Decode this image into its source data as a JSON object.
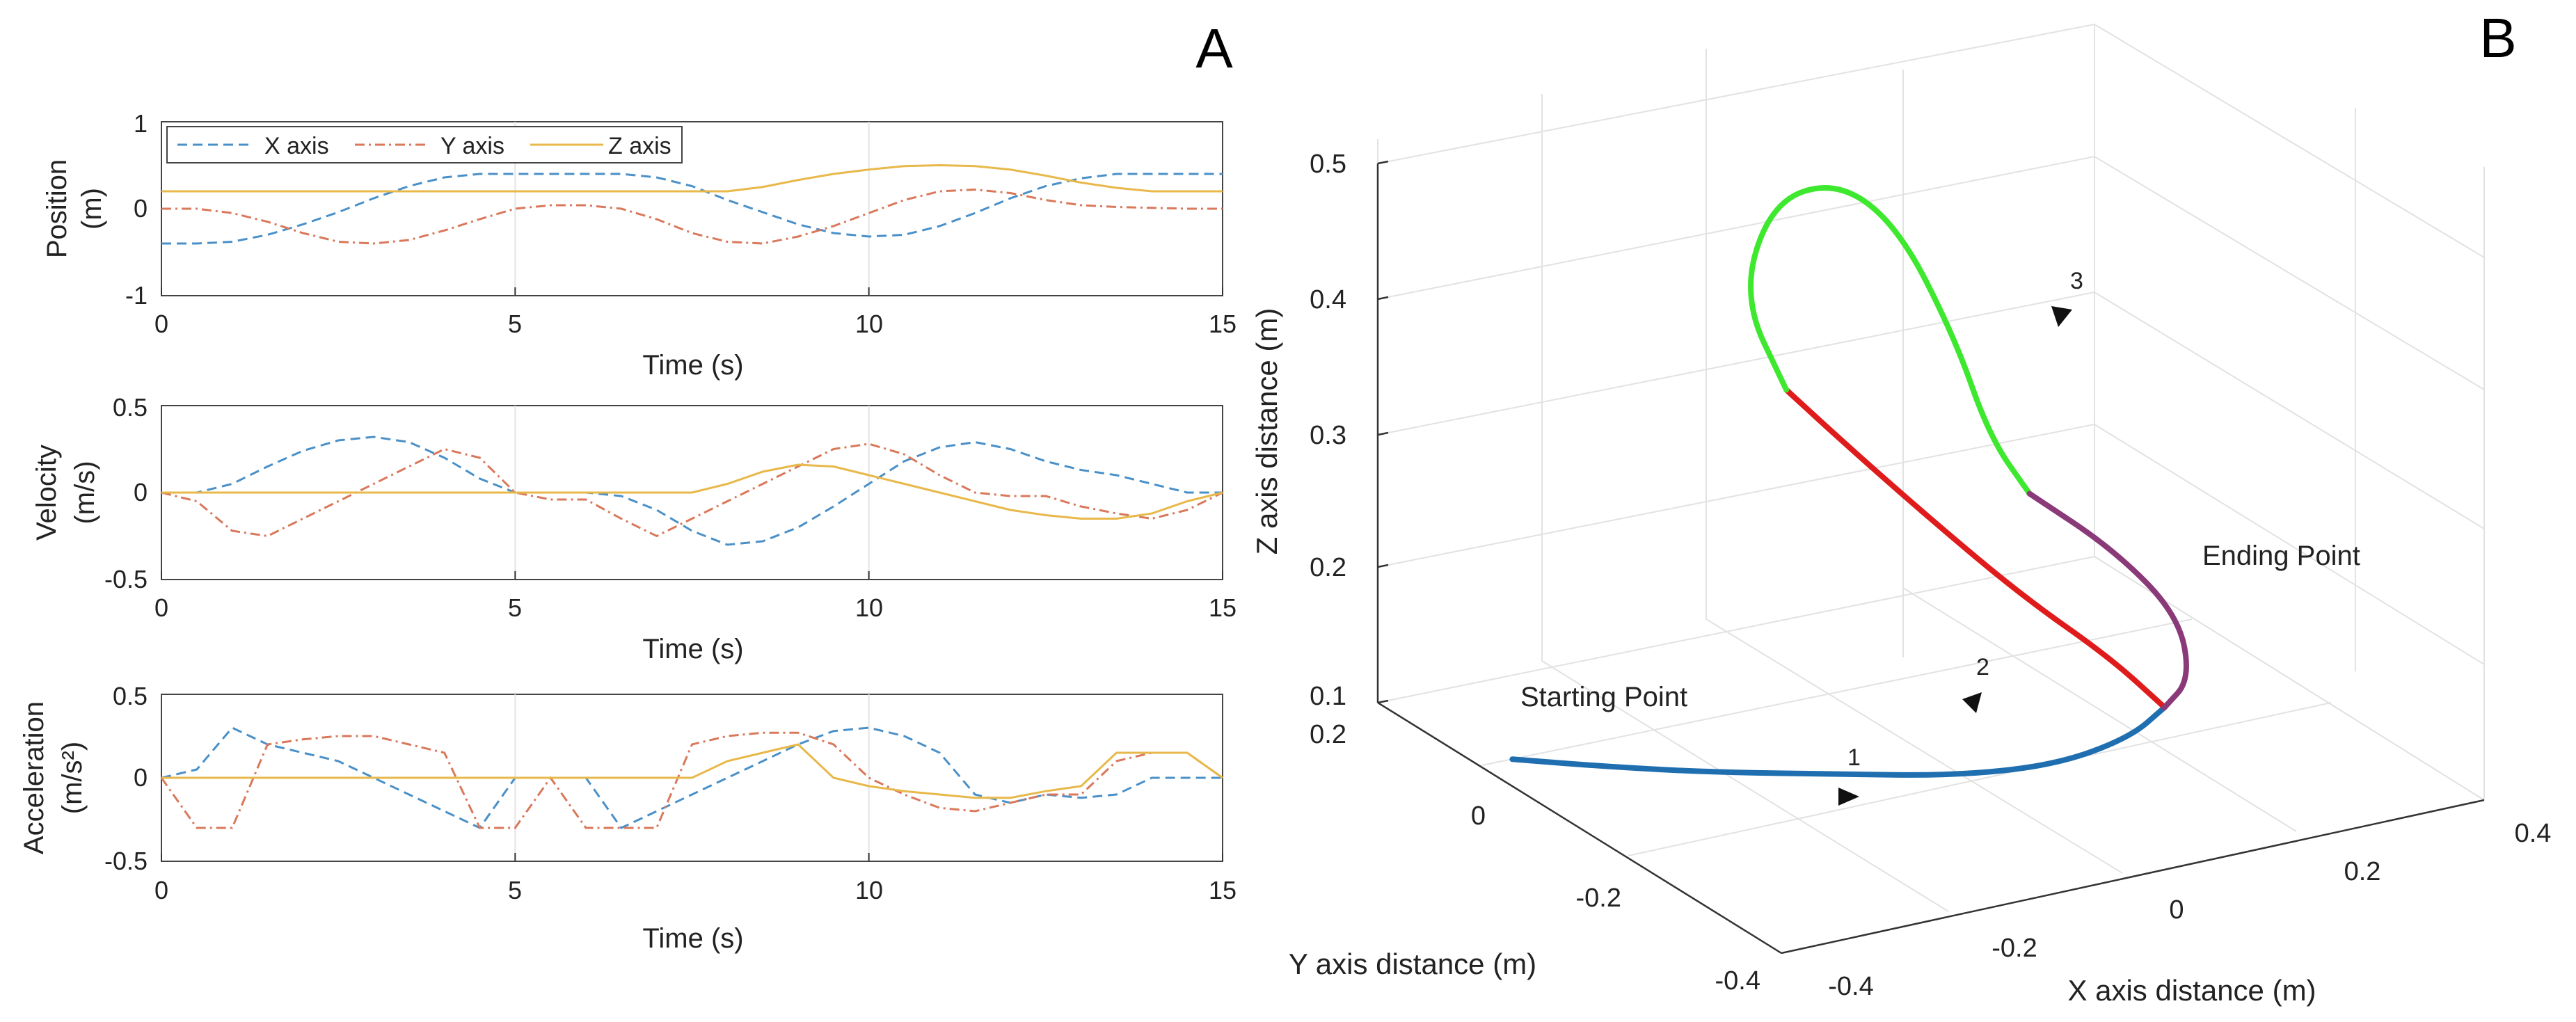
{
  "panels": {
    "a_label": "A",
    "b_label": "B"
  },
  "colors": {
    "x": "#4a90c8",
    "y": "#d9785a",
    "z": "#e8b84a",
    "axis": "#333333",
    "grid": "#e4e4e4",
    "blue": "#1f6fb0",
    "red": "#e01b1b",
    "green": "#3ee82e",
    "purple": "#8a3a78"
  },
  "chart_data": [
    {
      "type": "line",
      "title": "",
      "xlabel": "Time (s)",
      "ylabel": [
        "Position",
        "(m)"
      ],
      "xlim": [
        0,
        15
      ],
      "ylim": [
        -1,
        1
      ],
      "xticks": [
        "0",
        "5",
        "10",
        "15"
      ],
      "yticks": [
        "-1",
        "0",
        "1"
      ],
      "legend": {
        "placement": "top-left",
        "entries": [
          "X axis",
          "Y axis",
          "Z axis"
        ]
      },
      "x": [
        0,
        0.5,
        1,
        1.5,
        2,
        2.5,
        3,
        3.5,
        4,
        4.5,
        5,
        5.5,
        6,
        6.5,
        7,
        7.5,
        8,
        8.5,
        9,
        9.5,
        10,
        10.5,
        11,
        11.5,
        12,
        12.5,
        13,
        13.5,
        14,
        14.5,
        15
      ],
      "series": [
        {
          "name": "X axis",
          "values": [
            -0.4,
            -0.4,
            -0.38,
            -0.3,
            -0.18,
            -0.04,
            0.12,
            0.26,
            0.36,
            0.4,
            0.4,
            0.4,
            0.4,
            0.4,
            0.36,
            0.26,
            0.1,
            -0.04,
            -0.18,
            -0.28,
            -0.32,
            -0.3,
            -0.2,
            -0.05,
            0.12,
            0.26,
            0.35,
            0.4,
            0.4,
            0.4,
            0.4
          ]
        },
        {
          "name": "Y axis",
          "values": [
            0,
            0,
            -0.05,
            -0.15,
            -0.28,
            -0.38,
            -0.4,
            -0.36,
            -0.25,
            -0.12,
            0,
            0.04,
            0.04,
            0,
            -0.12,
            -0.28,
            -0.38,
            -0.4,
            -0.32,
            -0.2,
            -0.05,
            0.1,
            0.2,
            0.22,
            0.18,
            0.1,
            0.04,
            0.02,
            0.01,
            0,
            0
          ]
        },
        {
          "name": "Z axis",
          "values": [
            0.2,
            0.2,
            0.2,
            0.2,
            0.2,
            0.2,
            0.2,
            0.2,
            0.2,
            0.2,
            0.2,
            0.2,
            0.2,
            0.2,
            0.2,
            0.2,
            0.2,
            0.25,
            0.33,
            0.4,
            0.45,
            0.49,
            0.5,
            0.49,
            0.45,
            0.38,
            0.3,
            0.24,
            0.2,
            0.2,
            0.2
          ]
        }
      ]
    },
    {
      "type": "line",
      "title": "",
      "xlabel": "Time (s)",
      "ylabel": [
        "Velocity",
        "(m/s)"
      ],
      "xlim": [
        0,
        15
      ],
      "ylim": [
        -0.5,
        0.5
      ],
      "xticks": [
        "0",
        "5",
        "10",
        "15"
      ],
      "yticks": [
        "-0.5",
        "0",
        "0.5"
      ],
      "x": [
        0,
        0.5,
        1,
        1.5,
        2,
        2.5,
        3,
        3.5,
        4,
        4.5,
        5,
        5.5,
        6,
        6.5,
        7,
        7.5,
        8,
        8.5,
        9,
        9.5,
        10,
        10.5,
        11,
        11.5,
        12,
        12.5,
        13,
        13.5,
        14,
        14.5,
        15
      ],
      "series": [
        {
          "name": "X axis",
          "values": [
            0,
            0,
            0.05,
            0.15,
            0.24,
            0.3,
            0.32,
            0.29,
            0.2,
            0.08,
            0,
            0,
            0,
            -0.02,
            -0.1,
            -0.22,
            -0.3,
            -0.28,
            -0.2,
            -0.08,
            0.05,
            0.18,
            0.26,
            0.29,
            0.25,
            0.18,
            0.13,
            0.1,
            0.05,
            0,
            0
          ]
        },
        {
          "name": "Y axis",
          "values": [
            0,
            -0.05,
            -0.22,
            -0.25,
            -0.15,
            -0.05,
            0.05,
            0.15,
            0.25,
            0.2,
            0,
            -0.04,
            -0.04,
            -0.15,
            -0.25,
            -0.15,
            -0.05,
            0.05,
            0.15,
            0.25,
            0.28,
            0.22,
            0.1,
            0,
            -0.02,
            -0.02,
            -0.08,
            -0.12,
            -0.15,
            -0.1,
            0
          ]
        },
        {
          "name": "Z axis",
          "values": [
            0,
            0,
            0,
            0,
            0,
            0,
            0,
            0,
            0,
            0,
            0,
            0,
            0,
            0,
            0,
            0,
            0.05,
            0.12,
            0.16,
            0.15,
            0.1,
            0.05,
            0,
            -0.05,
            -0.1,
            -0.13,
            -0.15,
            -0.15,
            -0.12,
            -0.05,
            0
          ]
        }
      ]
    },
    {
      "type": "line",
      "title": "",
      "xlabel": "Time (s)",
      "ylabel": [
        "Acceleration",
        "(m/s²)"
      ],
      "xlim": [
        0,
        15
      ],
      "ylim": [
        -0.5,
        0.5
      ],
      "xticks": [
        "0",
        "5",
        "10",
        "15"
      ],
      "yticks": [
        "-0.5",
        "0",
        "0.5"
      ],
      "x": [
        0,
        0.5,
        1,
        1.5,
        2,
        2.5,
        3,
        3.5,
        4,
        4.5,
        5,
        5.5,
        6,
        6.5,
        7,
        7.5,
        8,
        8.5,
        9,
        9.5,
        10,
        10.5,
        11,
        11.5,
        12,
        12.5,
        13,
        13.5,
        14,
        14.5,
        15
      ],
      "series": [
        {
          "name": "X axis",
          "values": [
            0,
            0.05,
            0.3,
            0.2,
            0.15,
            0.1,
            0,
            -0.1,
            -0.2,
            -0.3,
            0,
            0,
            0,
            -0.3,
            -0.2,
            -0.1,
            0,
            0.1,
            0.2,
            0.28,
            0.3,
            0.25,
            0.15,
            -0.1,
            -0.15,
            -0.1,
            -0.12,
            -0.1,
            0,
            0,
            0
          ]
        },
        {
          "name": "Y axis",
          "values": [
            0,
            -0.3,
            -0.3,
            0.2,
            0.23,
            0.25,
            0.25,
            0.2,
            0.15,
            -0.3,
            -0.3,
            0,
            -0.3,
            -0.3,
            -0.3,
            0.2,
            0.25,
            0.27,
            0.27,
            0.2,
            0,
            -0.1,
            -0.18,
            -0.2,
            -0.15,
            -0.1,
            -0.1,
            0.1,
            0.15,
            0.15,
            0
          ]
        },
        {
          "name": "Z axis",
          "values": [
            0,
            0,
            0,
            0,
            0,
            0,
            0,
            0,
            0,
            0,
            0,
            0,
            0,
            0,
            0,
            0,
            0.1,
            0.15,
            0.2,
            0,
            -0.05,
            -0.08,
            -0.1,
            -0.12,
            -0.12,
            -0.08,
            -0.05,
            0.15,
            0.15,
            0.15,
            0
          ]
        }
      ]
    },
    {
      "type": "line",
      "subtype": "3d-path",
      "title": "",
      "xlabel": "X axis distance (m)",
      "ylabel": "Y axis distance (m)",
      "zlabel": "Z axis distance (m)",
      "xlim": [
        -0.4,
        0.4
      ],
      "ylim": [
        -0.4,
        0.2
      ],
      "zlim": [
        0.1,
        0.5
      ],
      "xticks": [
        "-0.4",
        "-0.2",
        "0",
        "0.2",
        "0.4"
      ],
      "yticks": [
        "-0.4",
        "-0.2",
        "0",
        "0.2"
      ],
      "zticks": [
        "0.1",
        "0.2",
        "0.3",
        "0.4",
        "0.5"
      ],
      "grid": true,
      "annotations": {
        "start": "Starting Point",
        "end": "Ending Point",
        "arrow1": "1",
        "arrow2": "2",
        "arrow3": "3"
      },
      "segments": [
        {
          "name": "segment 1",
          "color": "blue",
          "points": [
            [
              -0.4,
              0,
              0.12
            ],
            [
              -0.33,
              -0.05,
              0.12
            ],
            [
              -0.25,
              -0.1,
              0.12
            ],
            [
              -0.15,
              -0.15,
              0.12
            ],
            [
              -0.05,
              -0.2,
              0.12
            ],
            [
              0.05,
              -0.22,
              0.12
            ],
            [
              0.15,
              -0.2,
              0.12
            ],
            [
              0.22,
              -0.16,
              0.12
            ]
          ]
        },
        {
          "name": "segment 2",
          "color": "red",
          "points": [
            [
              0.22,
              -0.16,
              0.12
            ],
            [
              0.15,
              -0.17,
              0.17
            ],
            [
              0.05,
              -0.17,
              0.23
            ],
            [
              -0.05,
              -0.16,
              0.3
            ],
            [
              -0.13,
              -0.14,
              0.36
            ],
            [
              -0.18,
              -0.12,
              0.4
            ]
          ]
        },
        {
          "name": "segment 3",
          "color": "green",
          "points": [
            [
              -0.18,
              -0.12,
              0.4
            ],
            [
              -0.2,
              -0.08,
              0.46
            ],
            [
              -0.12,
              -0.02,
              0.5
            ],
            [
              0,
              0.04,
              0.48
            ],
            [
              0.1,
              0.08,
              0.42
            ],
            [
              0.18,
              0.1,
              0.32
            ],
            [
              0.22,
              0.1,
              0.24
            ],
            [
              0.25,
              0.08,
              0.2
            ]
          ]
        },
        {
          "name": "return",
          "color": "purple",
          "points": [
            [
              0.25,
              0.08,
              0.2
            ],
            [
              0.3,
              0.02,
              0.17
            ],
            [
              0.32,
              -0.05,
              0.14
            ],
            [
              0.28,
              -0.12,
              0.12
            ],
            [
              0.22,
              -0.16,
              0.12
            ]
          ]
        }
      ]
    }
  ]
}
